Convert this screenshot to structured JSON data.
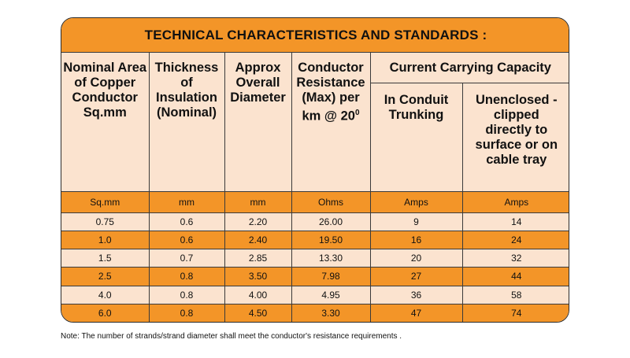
{
  "title": "TECHNICAL CHARACTERISTICS AND STANDARDS :",
  "headers": {
    "area": "Nominal Area of Copper Conductor Sq.mm",
    "thickness": "Thickness of Insulation (Nominal)",
    "diameter": "Approx Overall Diameter",
    "resistance": "Conductor Resistance (Max) per km @ 20",
    "resistance_sup": "0",
    "capacity_group": "Current Carrying Capacity",
    "conduit": "In Conduit Trunking",
    "unenclosed": "Unenclosed - clipped directly to surface or on cable tray"
  },
  "units": [
    "Sq.mm",
    "mm",
    "mm",
    "Ohms",
    "Amps",
    "Amps"
  ],
  "rows": [
    [
      "0.75",
      "0.6",
      "2.20",
      "26.00",
      "9",
      "14"
    ],
    [
      "1.0",
      "0.6",
      "2.40",
      "19.50",
      "16",
      "24"
    ],
    [
      "1.5",
      "0.7",
      "2.85",
      "13.30",
      "20",
      "32"
    ],
    [
      "2.5",
      "0.8",
      "3.50",
      "7.98",
      "27",
      "44"
    ],
    [
      "4.0",
      "0.8",
      "4.00",
      "4.95",
      "36",
      "58"
    ],
    [
      "6.0",
      "0.8",
      "4.50",
      "3.30",
      "47",
      "74"
    ]
  ],
  "note": "Note: The number of strands/strand diameter shall meet the conductor's resistance requirements .",
  "colors": {
    "orange": "#f39528",
    "peach": "#fbe3cf",
    "border": "#2b2b2b"
  }
}
